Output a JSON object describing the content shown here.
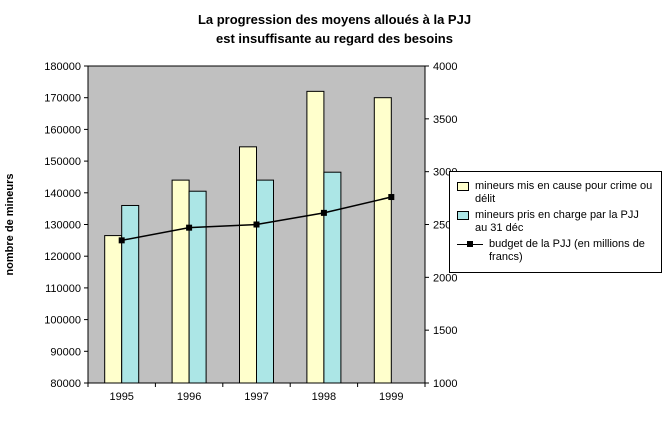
{
  "title": {
    "line1": "La progression des moyens alloués à la PJJ",
    "line2": "est insuffisante au regard des besoins"
  },
  "chart_data": {
    "type": "bar",
    "subtype": "combo bar + line, dual axis",
    "categories": [
      "1995",
      "1996",
      "1997",
      "1998",
      "1999"
    ],
    "series": [
      {
        "name": "mineurs mis en cause pour crime ou délit",
        "type": "bar",
        "axis": "left",
        "color": "#FFFFCC",
        "values": [
          126500,
          144000,
          154500,
          172000,
          170000
        ]
      },
      {
        "name": "mineurs pris en charge par la PJJ au 31 déc",
        "type": "bar",
        "axis": "left",
        "color": "#ACE6E6",
        "values": [
          136000,
          140500,
          144000,
          146500,
          null
        ]
      },
      {
        "name": "budget de la PJJ (en millions de francs)",
        "type": "line",
        "axis": "right",
        "color": "#000000",
        "marker": "square",
        "values": [
          2350,
          2470,
          2500,
          2610,
          2760
        ]
      }
    ],
    "left_axis": {
      "label": "nombre de mineurs",
      "min": 80000,
      "max": 180000,
      "step": 10000
    },
    "right_axis": {
      "label": "",
      "min": 1000,
      "max": 4000,
      "step": 500
    },
    "plot_background": "#C0C0C0",
    "axis_color": "#000000",
    "grid": false,
    "legend_position": "right"
  }
}
